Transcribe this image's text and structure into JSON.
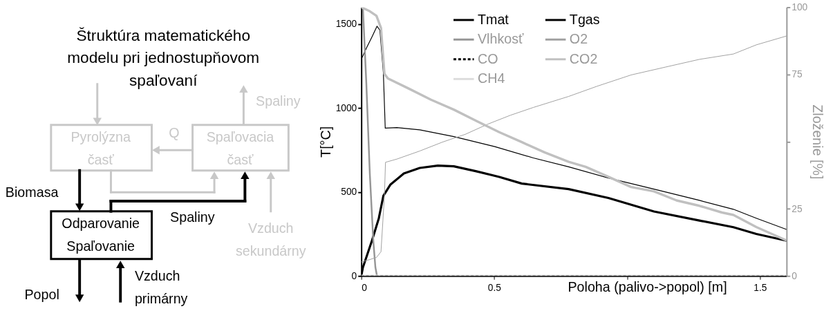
{
  "chart_data": [
    {
      "type": "other",
      "title": "Štruktúra matematického modelu pri jednostupňovom spaľovaní",
      "annotations": [
        "Pyrolýzna časť",
        "Q",
        "Spaľovacia časť",
        "Spaliny",
        "Biomasa",
        "Odparovanie Spaľovanie",
        "Spaliny",
        "Vzduch sekundárny",
        "Popol",
        "Vzduch primárny"
      ]
    },
    {
      "type": "line",
      "xlabel": "Poloha (palivo->popol) [m]",
      "ylabel": "T[°C]",
      "y2label": "Zloženie [%]",
      "xlim": [
        0,
        1.6
      ],
      "xticks": [
        0,
        0.5,
        {
          "value": 1,
          "label": null
        },
        1.5
      ],
      "ylim": [
        0,
        1600
      ],
      "yticks": [
        0,
        500,
        1000,
        1500
      ],
      "y2lim": [
        0,
        100
      ],
      "y2ticks": [
        0,
        25,
        {
          "value": 50,
          "label": null
        },
        75,
        100
      ],
      "grid": false,
      "legend": "top",
      "marker": "none",
      "series": [
        {
          "name": "Tmat",
          "color": "#000000",
          "line_style": "solid",
          "x": [
            0,
            0.006,
            0.04,
            0.066,
            0.083,
            0.109,
            0.16,
            0.22,
            0.288,
            0.348,
            0.433,
            0.519,
            0.604,
            0.78,
            0.93,
            1.101,
            1.272,
            1.4,
            1.486,
            1.6
          ],
          "values": [
            0,
            51,
            210,
            344,
            477,
            543,
            610,
            643,
            657,
            653,
            623,
            590,
            550,
            517,
            464,
            384,
            330,
            290,
            250,
            210
          ]
        },
        {
          "name": "Tgas",
          "color": "#000000",
          "line_style": "solid",
          "x": [
            0.003,
            0.019,
            0.04,
            0.059,
            0.07,
            0.083,
            0.09,
            0.134,
            0.22,
            0.348,
            0.502,
            0.647,
            0.78,
            0.93,
            1.101,
            1.272,
            1.4,
            1.486,
            1.6
          ],
          "values": [
            1300,
            1356,
            1423,
            1487,
            1463,
            1210,
            880,
            883,
            870,
            830,
            770,
            703,
            650,
            583,
            517,
            450,
            397,
            344,
            277
          ]
        },
        {
          "name": "Vlhkosť",
          "color": "#969696",
          "line_style": "solid",
          "axis": "y2",
          "x": [
            0.006,
            0.019,
            0.032,
            0.045,
            0.053,
            0.059
          ],
          "values": [
            99.8,
            71.4,
            38.1,
            13.2,
            3.2,
            0
          ]
        },
        {
          "name": "O2",
          "color": "#a0a0a0",
          "line_style": "solid",
          "axis": "y2",
          "x": [
            0,
            0.032,
            0.057,
            0.074,
            0.087,
            0.091,
            0.134,
            0.22,
            0.305,
            0.391,
            0.476,
            0.561,
            0.647,
            0.78,
            0.887,
            1.015,
            1.143,
            1.272,
            1.4,
            1.486,
            1.6
          ],
          "values": [
            5.2,
            6.1,
            6.9,
            9.0,
            29.8,
            42.3,
            43.5,
            46.5,
            49.8,
            52.7,
            56.5,
            59.8,
            62.7,
            66.8,
            70.6,
            74.8,
            77.7,
            80.6,
            82.6,
            86,
            89.3
          ]
        },
        {
          "name": "CO",
          "color": "#000000",
          "line_style": "dashed",
          "axis": "y2",
          "x": [
            0,
            1.6
          ],
          "values": [
            0,
            0
          ]
        },
        {
          "name": "CO2",
          "color": "#c0c0c0",
          "line_style": "solid",
          "axis": "y2",
          "x": [
            0,
            0.032,
            0.057,
            0.074,
            0.087,
            0.1,
            0.177,
            0.262,
            0.348,
            0.433,
            0.519,
            0.604,
            0.689,
            0.78,
            0.844,
            0.93,
            1.015,
            1.101,
            1.186,
            1.272,
            1.357,
            1.4,
            1.486,
            1.6
          ],
          "values": [
            100,
            98.5,
            96.8,
            92.3,
            75.2,
            73.5,
            69.8,
            65.6,
            61.9,
            57.7,
            53.5,
            49.8,
            46,
            42.5,
            40.6,
            36.9,
            33.1,
            31.5,
            28.1,
            26.1,
            23.6,
            22.7,
            18.2,
            13.2
          ]
        },
        {
          "name": "CH4",
          "color": "#dcdcdc",
          "line_style": "solid",
          "axis": "y2",
          "x": [
            0,
            1.6
          ],
          "values": [
            0,
            0
          ]
        }
      ]
    }
  ]
}
